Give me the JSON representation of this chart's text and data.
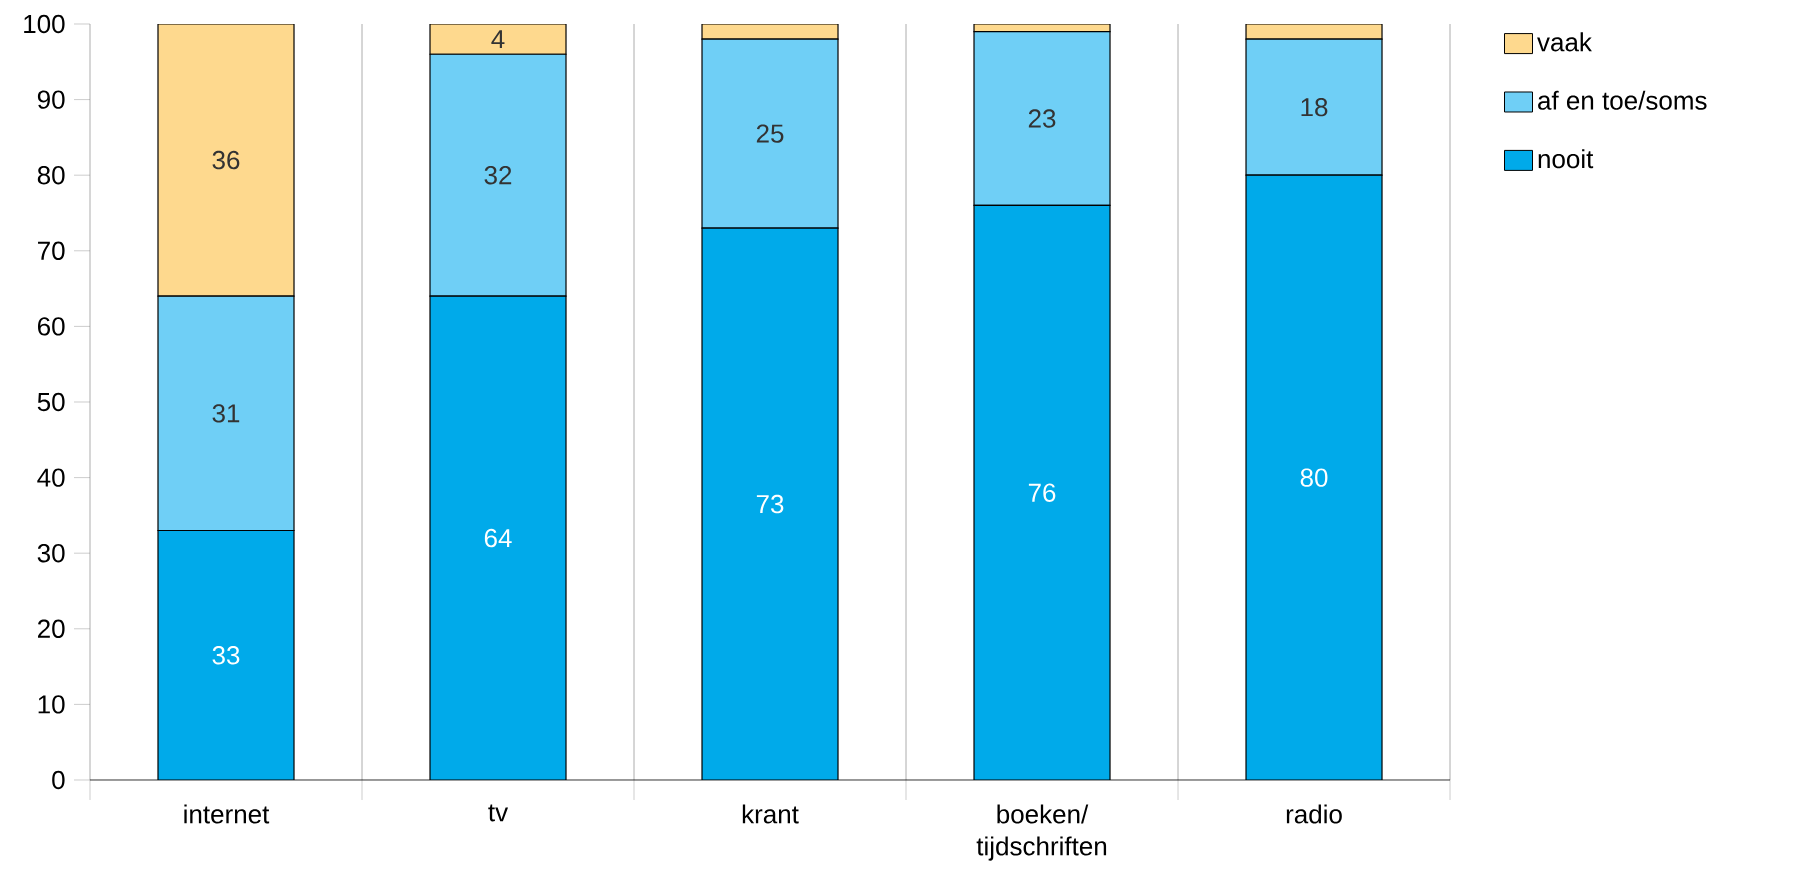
{
  "chart_data": {
    "type": "bar",
    "stacked": true,
    "categories": [
      "internet",
      "tv",
      "krant",
      "boeken/ tijdschriften",
      "radio"
    ],
    "series": [
      {
        "name": "nooit",
        "color": "#00aaea",
        "values": [
          33,
          64,
          73,
          76,
          80
        ],
        "value_labels": [
          "33",
          "64",
          "73",
          "76",
          "80"
        ]
      },
      {
        "name": "af en toe/soms",
        "color": "#6fcff6",
        "values": [
          31,
          32,
          25,
          23,
          18
        ],
        "value_labels": [
          "31",
          "32",
          "25",
          "23",
          "18"
        ]
      },
      {
        "name": "vaak",
        "color": "#fed98e",
        "values": [
          36,
          4,
          2,
          1,
          2
        ],
        "value_labels": [
          "36",
          "4",
          null,
          null,
          null
        ]
      }
    ],
    "ylim": [
      0,
      100
    ],
    "yticks": [
      0,
      10,
      20,
      30,
      40,
      50,
      60,
      70,
      80,
      90,
      100
    ],
    "grid": "x",
    "legend": "top right"
  }
}
